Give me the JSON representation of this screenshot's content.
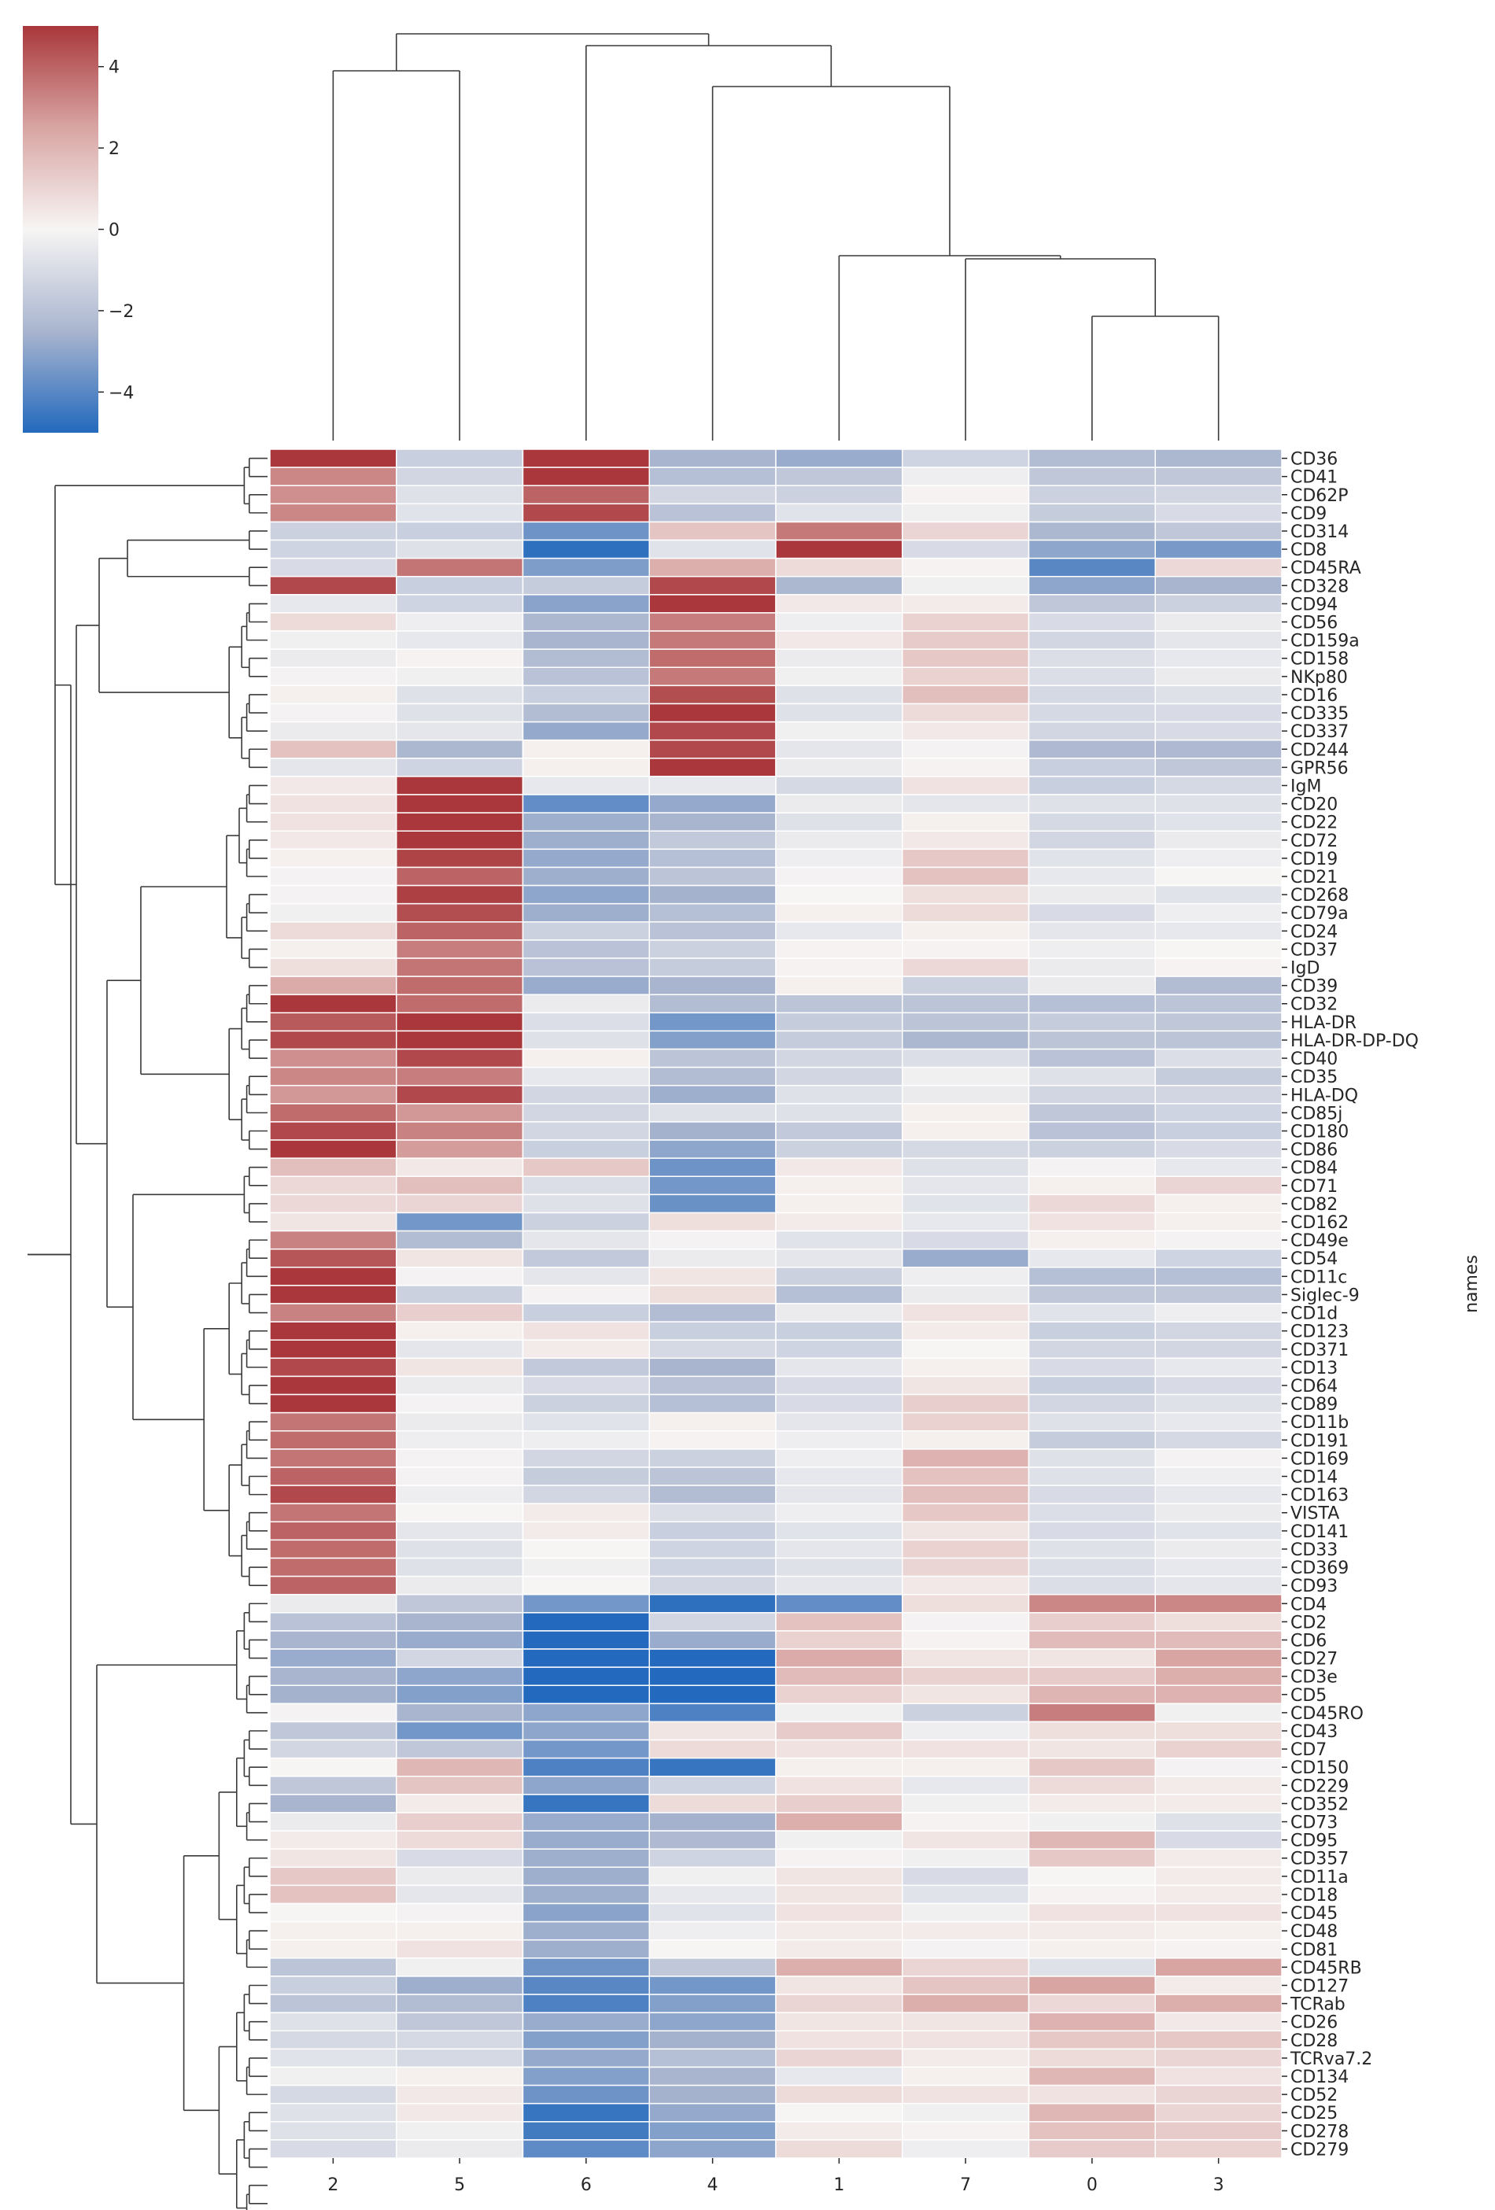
{
  "chart_data": {
    "type": "heatmap",
    "title": "",
    "subtype": "clustermap",
    "colormap": "vlag",
    "colormap_stops": [
      "#2369bd",
      "#a9b5cf",
      "#f7f5f4",
      "#d8a5a3",
      "#a9373b"
    ],
    "vmin": -5,
    "vmax": 5,
    "colorbar": {
      "ticks": [
        4,
        2,
        0,
        -2,
        -4
      ],
      "tick_labels": [
        "4",
        "2",
        "0",
        "−2",
        "−4"
      ],
      "placement": "top-left"
    },
    "ylabel": "names",
    "xlabel": "",
    "columns": [
      "2",
      "5",
      "6",
      "4",
      "1",
      "7",
      "0",
      "3"
    ],
    "rows": [
      "CD36",
      "CD41",
      "CD62P",
      "CD9",
      "CD314",
      "CD8",
      "CD45RA",
      "CD328",
      "CD94",
      "CD56",
      "CD159a",
      "CD158",
      "NKp80",
      "CD16",
      "CD335",
      "CD337",
      "CD244",
      "GPR56",
      "IgM",
      "CD20",
      "CD22",
      "CD72",
      "CD19",
      "CD21",
      "CD268",
      "CD79a",
      "CD24",
      "CD37",
      "IgD",
      "CD39",
      "CD32",
      "HLA-DR",
      "HLA-DR-DP-DQ",
      "CD40",
      "CD35",
      "HLA-DQ",
      "CD85j",
      "CD180",
      "CD86",
      "CD84",
      "CD71",
      "CD82",
      "CD162",
      "CD49e",
      "CD54",
      "CD11c",
      "Siglec-9",
      "CD1d",
      "CD123",
      "CD371",
      "CD13",
      "CD64",
      "CD89",
      "CD11b",
      "CD191",
      "CD169",
      "CD14",
      "CD163",
      "VISTA",
      "CD141",
      "CD33",
      "CD369",
      "CD93",
      "CD4",
      "CD2",
      "CD6",
      "CD27",
      "CD3e",
      "CD5",
      "CD45RO",
      "CD43",
      "CD7",
      "CD150",
      "CD229",
      "CD352",
      "CD73",
      "CD95",
      "CD357",
      "CD11a",
      "CD18",
      "CD45",
      "CD48",
      "CD81",
      "CD45RB",
      "CD127",
      "TCRab",
      "CD26",
      "CD28",
      "TCRva7.2",
      "CD134",
      "CD52",
      "CD25",
      "CD278",
      "CD279"
    ],
    "values": [
      [
        5,
        -1.5,
        5,
        -2.5,
        -2.8,
        -1.3,
        -2.2,
        -2.4
      ],
      [
        3.2,
        -1.2,
        5,
        -2.1,
        -1.8,
        -0.3,
        -1.8,
        -1.8
      ],
      [
        3.0,
        -0.8,
        4.0,
        -1.2,
        -1.4,
        0.1,
        -1.4,
        -1.2
      ],
      [
        3.2,
        -0.7,
        4.6,
        -2.0,
        -0.7,
        -0.2,
        -1.6,
        -1.0
      ],
      [
        -1.4,
        -1.5,
        -3.6,
        1.5,
        3.5,
        1.0,
        -2.4,
        -1.8
      ],
      [
        -1.3,
        -0.8,
        -4.8,
        -0.7,
        5,
        -1.0,
        -3.0,
        -3.4
      ],
      [
        -1.0,
        3.6,
        -3.3,
        2.2,
        0.8,
        0.1,
        -4.0,
        0.9
      ],
      [
        4.6,
        -1.5,
        -1.6,
        4.6,
        -2.4,
        -0.2,
        -3.0,
        -2.5
      ],
      [
        -0.5,
        -1.3,
        -3.1,
        5,
        0.4,
        0.3,
        -1.8,
        -1.4
      ],
      [
        0.8,
        -0.3,
        -2.4,
        3.4,
        -0.3,
        1.1,
        -1.0,
        -0.4
      ],
      [
        -0.2,
        -0.5,
        -2.5,
        3.5,
        0.4,
        1.3,
        -1.2,
        -0.6
      ],
      [
        -0.4,
        0.1,
        -2.2,
        3.8,
        -0.4,
        1.4,
        -0.9,
        -0.5
      ],
      [
        -0.1,
        -0.2,
        -2.0,
        3.5,
        -0.2,
        1.1,
        -0.9,
        -0.4
      ],
      [
        0.2,
        -0.8,
        -1.5,
        4.5,
        -0.8,
        1.7,
        -1.1,
        -0.8
      ],
      [
        -0.1,
        -0.8,
        -2.2,
        5,
        -0.8,
        0.8,
        -1.1,
        -1.0
      ],
      [
        -0.4,
        -0.6,
        -2.9,
        4.6,
        -0.2,
        0.4,
        -1.2,
        -1.0
      ],
      [
        1.6,
        -2.4,
        0.2,
        4.6,
        -0.6,
        -0.1,
        -2.3,
        -2.3
      ],
      [
        -0.6,
        -1.3,
        0.2,
        5,
        -0.4,
        0.1,
        -1.5,
        -1.8
      ],
      [
        0.4,
        5,
        -0.5,
        -0.5,
        -1.1,
        0.6,
        -1.5,
        -1.1
      ],
      [
        0.6,
        5,
        -3.8,
        -2.9,
        -0.4,
        -0.6,
        -0.8,
        -0.8
      ],
      [
        0.6,
        5,
        -2.7,
        -2.5,
        -0.8,
        0.2,
        -1.1,
        -0.7
      ],
      [
        0.4,
        5,
        -2.7,
        -1.7,
        -0.4,
        0.4,
        -1.2,
        -0.4
      ],
      [
        0.2,
        4.7,
        -2.9,
        -2.1,
        -0.3,
        1.4,
        -0.7,
        -0.3
      ],
      [
        -0.1,
        4.0,
        -2.7,
        -1.9,
        -0.1,
        1.6,
        -0.5,
        0
      ],
      [
        -0.1,
        4.8,
        -3.0,
        -2.6,
        0,
        0.7,
        -0.4,
        -0.7
      ],
      [
        -0.2,
        4.5,
        -2.7,
        -2.1,
        0.2,
        0.8,
        -1.0,
        -0.3
      ],
      [
        0.8,
        4.0,
        -1.4,
        -2.0,
        -0.5,
        0.2,
        -0.6,
        -0.5
      ],
      [
        0.2,
        3.4,
        -2.0,
        -1.4,
        0.1,
        0.1,
        -0.3,
        0
      ],
      [
        0.7,
        3.6,
        -2.0,
        -1.6,
        0.1,
        0.9,
        -0.4,
        0.1
      ],
      [
        2.3,
        3.8,
        -2.8,
        -2.5,
        0.2,
        -1.4,
        -0.4,
        -2.2
      ],
      [
        5,
        3.8,
        -0.4,
        -2.2,
        -1.9,
        -1.9,
        -2.1,
        -1.9
      ],
      [
        4.2,
        5,
        -0.9,
        -3.5,
        -1.6,
        -1.9,
        -1.6,
        -1.8
      ],
      [
        4.6,
        5,
        -0.8,
        -3.2,
        -1.6,
        -2.4,
        -1.9,
        -1.9
      ],
      [
        3.0,
        4.6,
        0.2,
        -1.9,
        -1.2,
        -0.9,
        -2.0,
        -0.9
      ],
      [
        3.2,
        3.4,
        -0.5,
        -2.2,
        -1.2,
        -0.2,
        -0.8,
        -1.6
      ],
      [
        2.8,
        4.6,
        -1.2,
        -2.7,
        -0.8,
        -0.4,
        -1.2,
        -1.2
      ],
      [
        3.8,
        2.8,
        -1.2,
        -0.8,
        -0.8,
        0.2,
        -1.8,
        -1.3
      ],
      [
        4.6,
        3.3,
        -1.2,
        -2.6,
        -1.7,
        0.2,
        -2.0,
        -1.5
      ],
      [
        5,
        2.7,
        -1.5,
        -3.0,
        -1.4,
        -1.1,
        -1.4,
        -1.0
      ],
      [
        1.7,
        0.4,
        1.4,
        -3.6,
        0.4,
        -0.8,
        -0.1,
        -0.5
      ],
      [
        0.9,
        1.7,
        -0.9,
        -3.5,
        0.2,
        -0.6,
        0.2,
        1.0
      ],
      [
        0.9,
        1.0,
        -0.8,
        -3.7,
        0.2,
        -0.7,
        0.9,
        0.2
      ],
      [
        0.5,
        -3.5,
        -1.4,
        0.7,
        0.3,
        -0.5,
        0.6,
        0.2
      ],
      [
        3.3,
        -2.2,
        -0.6,
        -0.1,
        -0.7,
        -1.0,
        0.2,
        -0.1
      ],
      [
        4.3,
        0.5,
        -1.7,
        -0.4,
        -0.6,
        -2.8,
        -0.5,
        -1.3
      ],
      [
        5,
        -0.1,
        -0.6,
        0.5,
        -1.4,
        -0.3,
        -2.1,
        -2.1
      ],
      [
        5,
        -1.4,
        -0.1,
        0.7,
        -2.1,
        -0.4,
        -1.8,
        -1.8
      ],
      [
        3.3,
        1.2,
        -1.5,
        -2.2,
        -0.4,
        0.6,
        -0.7,
        -0.3
      ],
      [
        5,
        0.2,
        0.6,
        -1.5,
        -1.5,
        0.3,
        -1.5,
        -1.2
      ],
      [
        5,
        -0.6,
        0.3,
        -1.1,
        -1.3,
        0,
        -1.2,
        -1.2
      ],
      [
        4.6,
        0.5,
        -1.7,
        -2.5,
        -0.6,
        0.2,
        -1.0,
        -0.5
      ],
      [
        5,
        -0.4,
        -1.0,
        -2.0,
        -1.0,
        0.5,
        -1.5,
        -1.0
      ],
      [
        5,
        -0.1,
        -1.4,
        -2.1,
        -1.0,
        1.2,
        -1.2,
        -0.8
      ],
      [
        3.6,
        -0.4,
        -0.7,
        0.2,
        -0.6,
        1.1,
        -0.8,
        -0.5
      ],
      [
        3.8,
        -0.3,
        -0.3,
        0.1,
        -0.3,
        0.2,
        -1.6,
        -1.1
      ],
      [
        3.6,
        -0.1,
        -1.2,
        -1.4,
        -0.3,
        2.1,
        -0.8,
        -0.1
      ],
      [
        4.0,
        -0.1,
        -1.6,
        -1.9,
        -0.5,
        1.6,
        -0.8,
        -0.3
      ],
      [
        4.6,
        -0.3,
        -1.2,
        -2.2,
        -0.6,
        1.7,
        -1.0,
        -0.5
      ],
      [
        3.6,
        0,
        0.3,
        -0.9,
        -0.3,
        1.4,
        -0.9,
        -0.4
      ],
      [
        4.0,
        -0.6,
        0.3,
        -1.5,
        -0.7,
        0.5,
        -1.0,
        -0.7
      ],
      [
        3.8,
        -0.8,
        0,
        -1.3,
        -0.6,
        1.1,
        -0.8,
        -0.4
      ],
      [
        3.8,
        -0.8,
        -0.2,
        -1.3,
        -0.8,
        1.0,
        -0.9,
        -0.5
      ],
      [
        4.0,
        -0.4,
        0,
        -1.2,
        -0.6,
        0.4,
        -0.9,
        -0.6
      ],
      [
        -0.4,
        -1.8,
        -3.5,
        -4.8,
        -3.8,
        0.7,
        3.2,
        3.2
      ],
      [
        -2.0,
        -2.5,
        -5,
        -1.2,
        1.6,
        -0.1,
        1.2,
        0.7
      ],
      [
        -2.5,
        -2.8,
        -5,
        -2.8,
        1.1,
        0.1,
        1.8,
        1.8
      ],
      [
        -2.8,
        -1.2,
        -5,
        -5,
        2.3,
        0.5,
        0.5,
        2.5
      ],
      [
        -2.5,
        -3.0,
        -5,
        -5,
        1.8,
        1.1,
        1.3,
        2.2
      ],
      [
        -2.6,
        -3.2,
        -5,
        -5,
        1.1,
        0.5,
        2.0,
        2.1
      ],
      [
        -0.1,
        -2.5,
        -3.0,
        -4.2,
        -0.2,
        -1.4,
        3.4,
        -0.2
      ],
      [
        -1.8,
        -3.5,
        -3.0,
        0.5,
        1.3,
        -0.3,
        0.7,
        0.7
      ],
      [
        -1.2,
        -1.8,
        -3.5,
        0.8,
        0.6,
        0.6,
        0.5,
        1.1
      ],
      [
        0,
        1.9,
        -4.2,
        -4.6,
        0.2,
        0.2,
        1.4,
        -0.1
      ],
      [
        -1.8,
        1.5,
        -3.0,
        -1.3,
        0.6,
        -0.5,
        0.8,
        0.3
      ],
      [
        -2.5,
        0.3,
        -4.6,
        0.8,
        1.2,
        -0.2,
        0.3,
        0.3
      ],
      [
        -0.4,
        1.2,
        -2.8,
        -2.6,
        2.2,
        0.1,
        -0.2,
        -0.8
      ],
      [
        0.3,
        0.8,
        -2.8,
        -2.3,
        -0.2,
        0.5,
        1.9,
        -1.0
      ],
      [
        0.5,
        -1.0,
        -2.7,
        -1.3,
        0.1,
        -0.2,
        1.4,
        0.3
      ],
      [
        1.4,
        -0.4,
        -2.7,
        -0.2,
        0.5,
        -1.0,
        0,
        0.3
      ],
      [
        1.6,
        -0.6,
        -2.7,
        -0.5,
        0.5,
        -0.7,
        0.1,
        0.3
      ],
      [
        0,
        -0.1,
        -3.1,
        -0.7,
        0.6,
        -0.2,
        0.6,
        0.6
      ],
      [
        0.2,
        0.2,
        -2.7,
        -0.3,
        0.3,
        0.3,
        0.3,
        0.2
      ],
      [
        0.2,
        0.6,
        -2.7,
        0,
        0.3,
        -0.1,
        0.2,
        0.1
      ],
      [
        -1.9,
        -0.2,
        -3.6,
        -1.8,
        2.2,
        1.0,
        -0.8,
        2.5
      ],
      [
        -1.5,
        -2.7,
        -4.0,
        -3.5,
        0.5,
        1.5,
        2.5,
        0.3
      ],
      [
        -1.9,
        -2.2,
        -4.2,
        -3.2,
        1.0,
        2.2,
        0.9,
        2.2
      ],
      [
        -0.8,
        -1.8,
        -2.8,
        -3.0,
        0.5,
        0.5,
        2.1,
        0.4
      ],
      [
        -1.1,
        -1.1,
        -3.2,
        -2.6,
        0.6,
        0.6,
        1.4,
        1.4
      ],
      [
        -0.7,
        -1.1,
        -2.9,
        -2.1,
        1.0,
        0.3,
        0.8,
        1.0
      ],
      [
        -0.2,
        0.2,
        -3.2,
        -2.5,
        -0.5,
        0.2,
        1.9,
        0.6
      ],
      [
        -1.1,
        0.4,
        -3.6,
        -2.6,
        0.8,
        0.6,
        0.6,
        1.0
      ],
      [
        -0.8,
        0.4,
        -4.6,
        -2.9,
        0,
        -0.2,
        1.9,
        1.0
      ],
      [
        -0.8,
        -0.2,
        -4.4,
        -3.2,
        0.3,
        0.1,
        1.6,
        1.3
      ],
      [
        -1.0,
        -0.4,
        -3.9,
        -3.0,
        0.8,
        -0.3,
        1.3,
        1.1
      ]
    ],
    "col_dendrogram": {
      "merges": [
        {
          "left": "6",
          "right": "4,1,7,0,3"
        },
        {
          "left": "2",
          "right": "5"
        },
        {
          "left": "0",
          "right": "3"
        },
        {
          "left": "7",
          "right": "0,3"
        },
        {
          "left": "1",
          "right": "7,0,3"
        },
        {
          "left": "4",
          "right": "1,7,0,3"
        },
        {
          "left": "2,5",
          "right": "6,4,1,7,0,3"
        }
      ]
    },
    "row_dendrogram": true
  }
}
